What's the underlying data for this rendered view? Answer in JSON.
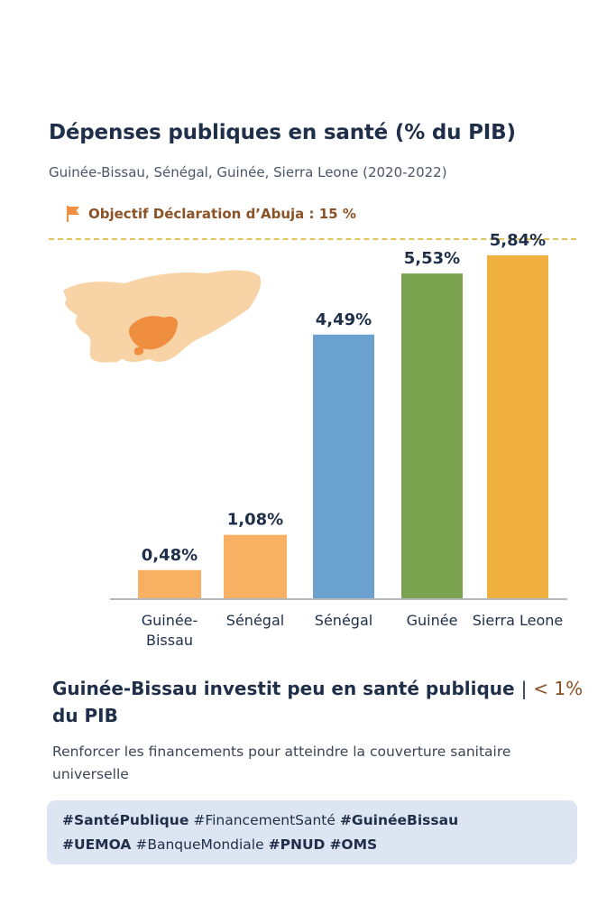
{
  "header": {
    "title": "Dépenses publiques en santé (% du PIB)",
    "subtitle": "Guinée-Bissau, Sénégal, Guinée, Sierra Leone (2020-2022)",
    "target_label": "Objectif Déclaration d’Abuja : 15 %"
  },
  "colors": {
    "bars": [
      "#f8b062",
      "#f8b062",
      "#6aa1cf",
      "#7aa24f",
      "#f0b140"
    ],
    "map_land": "#f7d3a6",
    "map_highlight": "#ee8e3e",
    "flag": "#ee8e3e",
    "target_line": "#e2c25a"
  },
  "chart_data": {
    "type": "bar",
    "title": "Dépenses publiques en santé (% du PIB)",
    "categories": [
      "Guinée-\nBissau",
      "Sénégal",
      "Sénégal",
      "Guinée",
      "Sierra Leone"
    ],
    "values": [
      0.48,
      1.08,
      4.49,
      5.53,
      5.84
    ],
    "value_labels": [
      "0,48%",
      "1,08%",
      "4,49%",
      "5,53%",
      "5,84%"
    ],
    "ylim": [
      0,
      6.5
    ],
    "reference_line": {
      "label": "Objectif Déclaration d’Abuja : 15 %",
      "value": 15
    }
  },
  "footer": {
    "headline_main": "Guinée-Bissau investit peu en santé publique",
    "headline_sep": "|",
    "headline_accent": "< 1%",
    "headline_tail": "du PIB",
    "body": "Renforcer les financements pour atteindre la couverture sanitaire universelle",
    "hashtags": [
      {
        "text": "#SantéPublique",
        "bold": true
      },
      {
        "text": "#FinancementSanté",
        "bold": false
      },
      {
        "text": "#GuinéeBissau",
        "bold": true
      },
      {
        "text": "#UEMOA",
        "bold": true
      },
      {
        "text": "#BanqueMondiale",
        "bold": false
      },
      {
        "text": "#PNUD",
        "bold": true
      },
      {
        "text": "#OMS",
        "bold": true
      }
    ]
  }
}
